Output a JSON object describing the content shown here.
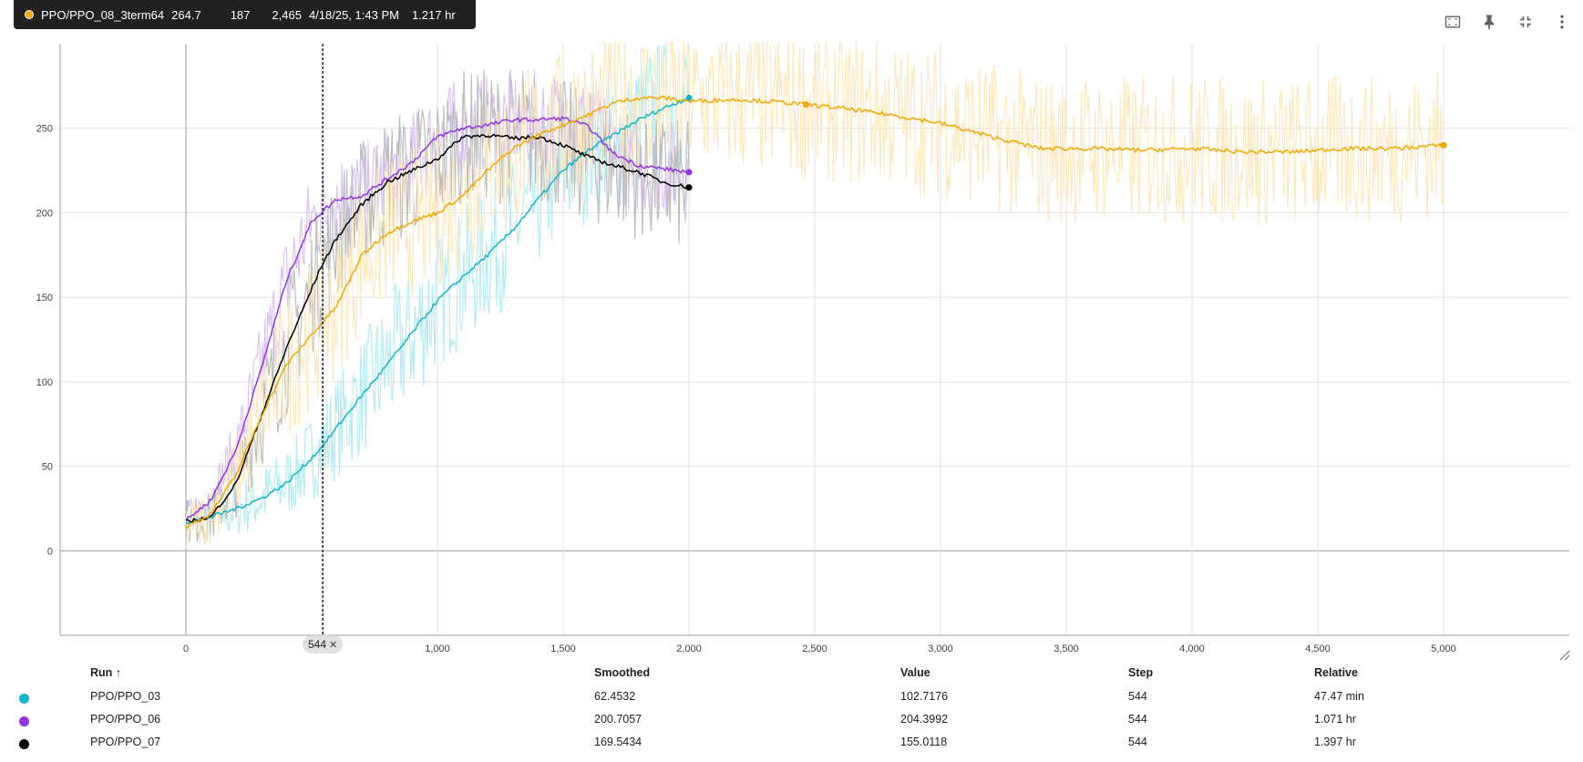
{
  "tooltip": {
    "run": "PPO/PPO_08_3term64",
    "smoothed": "264.7",
    "value": "187",
    "step": "2,465",
    "time": "4/18/25, 1:43 PM",
    "relative": "1.217 hr",
    "color": "#f5a700"
  },
  "toolbar": {
    "fit_icon": "fit-domain-icon",
    "pin_icon": "pin-icon",
    "collapse_icon": "fullscreen-exit-icon",
    "more_icon": "more-vert-icon"
  },
  "chart_data": {
    "type": "line",
    "xlim": [
      -500,
      5500
    ],
    "ylim": [
      -50,
      300
    ],
    "xticks": [
      "0",
      "1,000",
      "1,500",
      "2,000",
      "2,500",
      "3,000",
      "3,500",
      "4,000",
      "4,500",
      "5,000"
    ],
    "xtick_values": [
      0,
      1000,
      1500,
      2000,
      2500,
      3000,
      3500,
      4000,
      4500,
      5000
    ],
    "yticks": [
      "0",
      "50",
      "100",
      "150",
      "200",
      "250"
    ],
    "ytick_values": [
      0,
      50,
      100,
      150,
      200,
      250
    ],
    "grid": true,
    "cursor_step": 544,
    "cursor_label": "544",
    "series": [
      {
        "color": "#12b5cb",
        "raw_color": "#b5ecf4",
        "noise": 42,
        "x": [
          0,
          100,
          200,
          300,
          400,
          500,
          544,
          600,
          700,
          800,
          900,
          1000,
          1100,
          1200,
          1300,
          1400,
          1500,
          1600,
          1700,
          1800,
          1900,
          2000
        ],
        "values": [
          17,
          20,
          25,
          31,
          40,
          55,
          62,
          73,
          92,
          110,
          129,
          148,
          162,
          175,
          190,
          208,
          225,
          237,
          246,
          255,
          262,
          268
        ]
      },
      {
        "color": "#9334e6",
        "raw_color": "#dcc3f5",
        "noise": 30,
        "x": [
          0,
          100,
          200,
          300,
          400,
          500,
          544,
          600,
          700,
          800,
          900,
          1000,
          1100,
          1200,
          1300,
          1400,
          1500,
          1600,
          1700,
          1800,
          1900,
          2000
        ],
        "values": [
          18,
          30,
          60,
          108,
          160,
          195,
          201,
          208,
          210,
          220,
          230,
          245,
          250,
          252,
          255,
          255,
          256,
          251,
          235,
          228,
          226,
          224
        ]
      },
      {
        "color": "#000000",
        "raw_color": "#bdbdbd",
        "noise": 40,
        "x": [
          0,
          100,
          200,
          300,
          400,
          500,
          544,
          600,
          700,
          800,
          900,
          1000,
          1100,
          1200,
          1300,
          1400,
          1500,
          1600,
          1700,
          1800,
          1900,
          2000
        ],
        "values": [
          17,
          20,
          40,
          80,
          120,
          155,
          170,
          185,
          205,
          218,
          225,
          232,
          245,
          246,
          244,
          245,
          240,
          233,
          228,
          224,
          218,
          215
        ]
      },
      {
        "color": "#f5a700",
        "raw_color": "#fde9bf",
        "noise": 45,
        "x": [
          0,
          100,
          200,
          300,
          400,
          500,
          544,
          600,
          700,
          800,
          900,
          1000,
          1100,
          1200,
          1300,
          1400,
          1500,
          1600,
          1700,
          1800,
          1900,
          2000,
          2200,
          2400,
          2600,
          2800,
          3000,
          3200,
          3400,
          3600,
          3800,
          4000,
          4200,
          4400,
          4600,
          4800,
          5000
        ],
        "values": [
          14,
          22,
          45,
          80,
          110,
          128,
          135,
          145,
          175,
          188,
          195,
          200,
          210,
          225,
          238,
          246,
          252,
          258,
          265,
          268,
          268,
          266,
          267,
          265,
          262,
          258,
          253,
          245,
          238,
          238,
          237,
          238,
          236,
          236,
          238,
          238,
          240
        ]
      }
    ]
  },
  "table": {
    "headers": {
      "run": "Run ↑",
      "smoothed": "Smoothed",
      "value": "Value",
      "step": "Step",
      "relative": "Relative"
    },
    "rows": [
      {
        "color": "#12b5cb",
        "run": "PPO/PPO_03",
        "smoothed": "62.4532",
        "value": "102.7176",
        "step": "544",
        "relative": "47.47 min"
      },
      {
        "color": "#9334e6",
        "run": "PPO/PPO_06",
        "smoothed": "200.7057",
        "value": "204.3992",
        "step": "544",
        "relative": "1.071 hr"
      },
      {
        "color": "#000000",
        "run": "PPO/PPO_07",
        "smoothed": "169.5434",
        "value": "155.0118",
        "step": "544",
        "relative": "1.397 hr"
      }
    ]
  }
}
